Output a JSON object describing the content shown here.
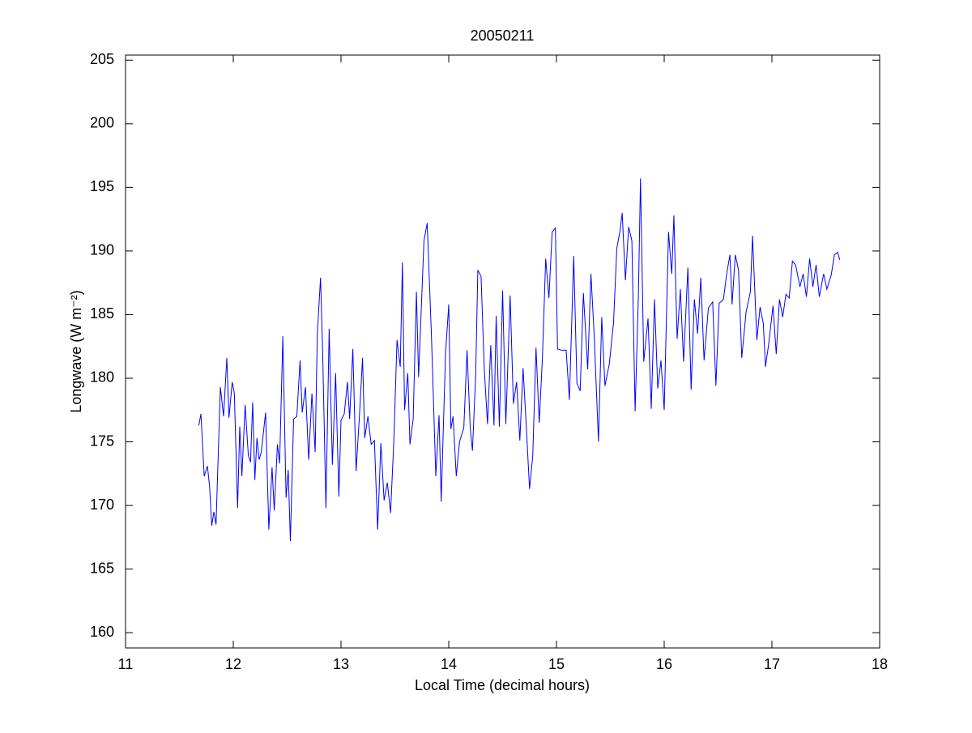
{
  "chart_data": {
    "type": "line",
    "title": "20050211",
    "x_label": "Local Time (decimal hours)",
    "y_label": "Longwave (W m⁻²)",
    "color": "#0000ff",
    "xlim": [
      11,
      18
    ],
    "xticks": [
      11,
      12,
      13,
      14,
      15,
      16,
      17,
      18
    ],
    "ylim": [
      158.8,
      205.4
    ],
    "yticks": [
      160,
      165,
      170,
      175,
      180,
      185,
      190,
      195,
      200,
      205
    ],
    "grid": false,
    "x": [
      11.68,
      11.7,
      11.73,
      11.76,
      11.78,
      11.8,
      11.82,
      11.84,
      11.88,
      11.91,
      11.94,
      11.96,
      11.99,
      12.01,
      12.04,
      12.06,
      12.08,
      12.11,
      12.14,
      12.16,
      12.18,
      12.2,
      12.22,
      12.24,
      12.26,
      12.3,
      12.33,
      12.36,
      12.38,
      12.41,
      12.43,
      12.46,
      12.49,
      12.51,
      12.53,
      12.56,
      12.59,
      12.62,
      12.64,
      12.67,
      12.7,
      12.73,
      12.76,
      12.78,
      12.81,
      12.83,
      12.86,
      12.89,
      12.92,
      12.95,
      12.98,
      13.0,
      13.03,
      13.06,
      13.08,
      13.11,
      13.14,
      13.17,
      13.2,
      13.22,
      13.25,
      13.28,
      13.31,
      13.34,
      13.37,
      13.4,
      13.43,
      13.46,
      13.49,
      13.52,
      13.55,
      13.57,
      13.59,
      13.62,
      13.64,
      13.67,
      13.7,
      13.72,
      13.77,
      13.8,
      13.84,
      13.88,
      13.91,
      13.93,
      13.97,
      14.0,
      14.02,
      14.04,
      14.07,
      14.1,
      14.14,
      14.17,
      14.2,
      14.22,
      14.25,
      14.27,
      14.3,
      14.33,
      14.36,
      14.39,
      14.42,
      14.44,
      14.47,
      14.5,
      14.53,
      14.57,
      14.6,
      14.63,
      14.66,
      14.69,
      14.72,
      14.75,
      14.78,
      14.81,
      14.84,
      14.87,
      14.9,
      14.93,
      14.96,
      14.99,
      15.01,
      15.05,
      15.09,
      15.12,
      15.16,
      15.19,
      15.22,
      15.25,
      15.29,
      15.32,
      15.35,
      15.39,
      15.42,
      15.45,
      15.49,
      15.53,
      15.56,
      15.59,
      15.61,
      15.64,
      15.67,
      15.7,
      15.73,
      15.76,
      15.78,
      15.81,
      15.85,
      15.88,
      15.91,
      15.94,
      15.97,
      16.0,
      16.04,
      16.07,
      16.09,
      16.12,
      16.15,
      16.18,
      16.22,
      16.25,
      16.28,
      16.31,
      16.34,
      16.37,
      16.41,
      16.45,
      16.48,
      16.51,
      16.55,
      16.58,
      16.61,
      16.63,
      16.66,
      16.69,
      16.72,
      16.76,
      16.8,
      16.82,
      16.86,
      16.89,
      16.92,
      16.94,
      16.97,
      17.01,
      17.04,
      17.07,
      17.1,
      17.13,
      17.16,
      17.19,
      17.22,
      17.26,
      17.29,
      17.32,
      17.35,
      17.38,
      17.41,
      17.44,
      17.48,
      17.51,
      17.55,
      17.58,
      17.61,
      17.63
    ],
    "values": [
      176.3,
      177.2,
      172.3,
      173.1,
      171.5,
      168.4,
      169.5,
      168.5,
      179.3,
      177,
      181.6,
      176.9,
      179.7,
      178.8,
      169.8,
      176.2,
      172.3,
      177.9,
      173.9,
      173.4,
      178.1,
      172,
      175.3,
      173.6,
      174.2,
      177.3,
      168.1,
      173,
      169.6,
      174.8,
      173.3,
      183.3,
      170.6,
      172.8,
      167.2,
      176.8,
      177,
      181.4,
      177.3,
      179.3,
      173.6,
      178.8,
      174.2,
      183.5,
      187.9,
      182,
      169.8,
      183.9,
      173.2,
      180.4,
      170.7,
      176.7,
      177.2,
      179.7,
      176.8,
      182.3,
      172.7,
      176.9,
      181.6,
      175.3,
      177,
      174.8,
      175.1,
      168.1,
      174.9,
      170.4,
      171.8,
      169.4,
      175,
      183,
      180.9,
      189.1,
      177.5,
      180.4,
      174.8,
      176.8,
      186.8,
      180.1,
      190.8,
      192.2,
      183.2,
      172.3,
      177.1,
      170.3,
      181.9,
      185.8,
      176,
      177,
      172.3,
      175,
      176.1,
      182.2,
      176,
      174.3,
      180.2,
      188.5,
      188,
      180.7,
      176.4,
      182.6,
      176.3,
      184.9,
      176.2,
      186.9,
      176.4,
      186.5,
      178,
      179.7,
      175.1,
      180.8,
      176.2,
      171.3,
      173.9,
      182.4,
      176.5,
      181.7,
      189.4,
      186.3,
      191.5,
      191.8,
      182.3,
      182.2,
      182.2,
      178.3,
      189.6,
      179.6,
      179,
      186.7,
      180.7,
      188.2,
      183.4,
      175,
      184.8,
      179.4,
      181.1,
      184.4,
      190.2,
      191.6,
      193,
      187.7,
      191.9,
      190.8,
      177.4,
      186.3,
      195.7,
      181.3,
      184.7,
      177.6,
      186.2,
      179.2,
      181.4,
      177.5,
      191.5,
      188.2,
      192.8,
      183.1,
      187,
      181.3,
      188.7,
      179.1,
      186.2,
      183.5,
      187.9,
      181.4,
      185.5,
      186,
      179.4,
      185.9,
      186.2,
      188.2,
      189.7,
      185.8,
      189.7,
      188.5,
      181.6,
      185.2,
      186.8,
      191.2,
      183,
      185.6,
      184.3,
      180.9,
      182.7,
      185.7,
      181.9,
      186.2,
      184.8,
      186.6,
      186.3,
      189.2,
      188.9,
      187.2,
      188.2,
      186.4,
      189.4,
      187.2,
      188.9,
      186.4,
      188.2,
      187,
      188.1,
      189.7,
      189.9,
      189.3
    ]
  }
}
